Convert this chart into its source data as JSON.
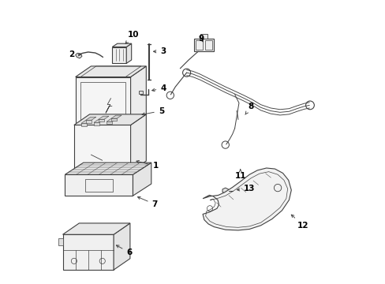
{
  "bg_color": "#ffffff",
  "line_color": "#404040",
  "label_color": "#000000",
  "fig_width": 4.89,
  "fig_height": 3.6,
  "dpi": 100,
  "label_fontsize": 7.5,
  "label_positions": {
    "1": {
      "text": [
        0.36,
        0.415
      ],
      "arrow": [
        0.29,
        0.435
      ],
      "ha": "left"
    },
    "2": {
      "text": [
        0.082,
        0.81
      ],
      "arrow": [
        0.115,
        0.808
      ],
      "ha": "right"
    },
    "3": {
      "text": [
        0.385,
        0.82
      ],
      "arrow": [
        0.35,
        0.82
      ],
      "ha": "left"
    },
    "4": {
      "text": [
        0.385,
        0.69
      ],
      "arrow": [
        0.345,
        0.68
      ],
      "ha": "left"
    },
    "5": {
      "text": [
        0.378,
        0.61
      ],
      "arrow": [
        0.31,
        0.595
      ],
      "ha": "left"
    },
    "6": {
      "text": [
        0.265,
        0.11
      ],
      "arrow": [
        0.22,
        0.14
      ],
      "ha": "left"
    },
    "7": {
      "text": [
        0.355,
        0.28
      ],
      "arrow": [
        0.295,
        0.31
      ],
      "ha": "left"
    },
    "8": {
      "text": [
        0.695,
        0.625
      ],
      "arrow": [
        0.68,
        0.59
      ],
      "ha": "left"
    },
    "9": {
      "text": [
        0.53,
        0.865
      ],
      "arrow": [
        0.54,
        0.845
      ],
      "ha": "center"
    },
    "10": {
      "text": [
        0.29,
        0.88
      ],
      "arrow": [
        0.255,
        0.84
      ],
      "ha": "center"
    },
    "11": {
      "text": [
        0.668,
        0.38
      ],
      "arrow": [
        0.668,
        0.405
      ],
      "ha": "center"
    },
    "12": {
      "text": [
        0.87,
        0.205
      ],
      "arrow": [
        0.84,
        0.25
      ],
      "ha": "left"
    },
    "13": {
      "text": [
        0.68,
        0.335
      ],
      "arrow": [
        0.645,
        0.33
      ],
      "ha": "left"
    }
  }
}
